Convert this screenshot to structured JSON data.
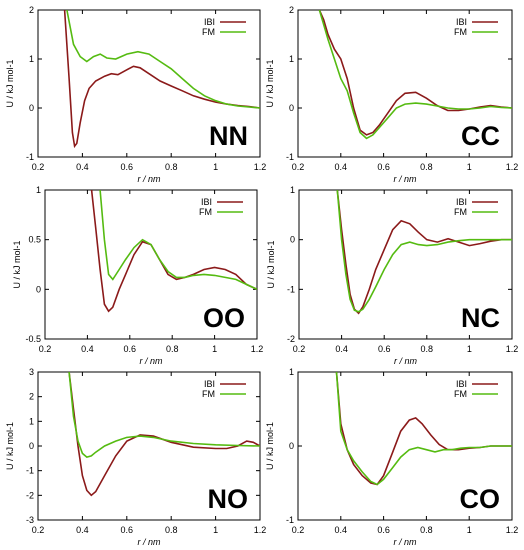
{
  "colors": {
    "IBI": "#8b1a1a",
    "FM": "#55bb11"
  },
  "chart_data": [
    {
      "id": "NN",
      "type": "line",
      "title": "NN",
      "xlabel": "r / nm",
      "ylabel": "U / kJ mol-1",
      "xlim": [
        0.2,
        1.2
      ],
      "ylim": [
        -1,
        2
      ],
      "xticks": [
        "0.2",
        "0.4",
        "0.6",
        "0.8",
        "1",
        "1.2"
      ],
      "yticks": [
        "-1",
        "0",
        "1",
        "2"
      ],
      "legend": "top-right",
      "series": [
        {
          "name": "IBI",
          "x": [
            0.32,
            0.34,
            0.355,
            0.365,
            0.375,
            0.39,
            0.41,
            0.43,
            0.46,
            0.5,
            0.53,
            0.56,
            0.6,
            0.63,
            0.66,
            0.7,
            0.75,
            0.8,
            0.85,
            0.9,
            0.95,
            1.0,
            1.05,
            1.1,
            1.15,
            1.2
          ],
          "y": [
            2.0,
            0.6,
            -0.5,
            -0.78,
            -0.72,
            -0.3,
            0.15,
            0.4,
            0.55,
            0.65,
            0.7,
            0.68,
            0.78,
            0.85,
            0.82,
            0.7,
            0.55,
            0.45,
            0.35,
            0.25,
            0.18,
            0.12,
            0.08,
            0.05,
            0.03,
            0.0
          ]
        },
        {
          "name": "FM",
          "x": [
            0.33,
            0.36,
            0.39,
            0.42,
            0.45,
            0.48,
            0.51,
            0.55,
            0.6,
            0.65,
            0.7,
            0.75,
            0.8,
            0.85,
            0.9,
            0.95,
            1.0,
            1.05,
            1.1,
            1.15,
            1.2
          ],
          "y": [
            2.0,
            1.3,
            1.05,
            0.95,
            1.05,
            1.1,
            1.02,
            1.0,
            1.1,
            1.15,
            1.1,
            0.95,
            0.8,
            0.6,
            0.4,
            0.25,
            0.15,
            0.08,
            0.04,
            0.02,
            0.0
          ]
        }
      ]
    },
    {
      "id": "CC",
      "type": "line",
      "title": "CC",
      "xlabel": "r / nm",
      "ylabel": "U / kJ mol-1",
      "xlim": [
        0.2,
        1.2
      ],
      "ylim": [
        -1,
        2
      ],
      "xticks": [
        "0.2",
        "0.4",
        "0.6",
        "0.8",
        "1",
        "1.2"
      ],
      "yticks": [
        "-1",
        "0",
        "1",
        "2"
      ],
      "legend": "top-right",
      "series": [
        {
          "name": "IBI",
          "x": [
            0.3,
            0.32,
            0.34,
            0.37,
            0.4,
            0.43,
            0.46,
            0.49,
            0.52,
            0.55,
            0.58,
            0.62,
            0.66,
            0.7,
            0.75,
            0.8,
            0.85,
            0.9,
            0.95,
            1.0,
            1.05,
            1.1,
            1.15,
            1.2
          ],
          "y": [
            2.0,
            1.8,
            1.5,
            1.2,
            1.0,
            0.6,
            0.0,
            -0.45,
            -0.55,
            -0.5,
            -0.35,
            -0.1,
            0.15,
            0.3,
            0.32,
            0.2,
            0.05,
            -0.05,
            -0.05,
            -0.02,
            0.02,
            0.05,
            0.02,
            0.0
          ]
        },
        {
          "name": "FM",
          "x": [
            0.3,
            0.32,
            0.34,
            0.37,
            0.4,
            0.43,
            0.46,
            0.49,
            0.52,
            0.55,
            0.58,
            0.62,
            0.66,
            0.7,
            0.75,
            0.8,
            0.85,
            0.9,
            0.95,
            1.0,
            1.05,
            1.1,
            1.15,
            1.2
          ],
          "y": [
            2.0,
            1.7,
            1.4,
            1.0,
            0.6,
            0.35,
            -0.1,
            -0.5,
            -0.62,
            -0.55,
            -0.4,
            -0.2,
            0.0,
            0.08,
            0.1,
            0.08,
            0.04,
            0.0,
            -0.02,
            -0.02,
            0.0,
            0.03,
            0.01,
            0.0
          ]
        }
      ]
    },
    {
      "id": "OO",
      "type": "line",
      "title": "OO",
      "xlabel": "r / nm",
      "ylabel": "U / kJ mol-1",
      "xlim": [
        0.2,
        1.2
      ],
      "ylim": [
        -0.5,
        1
      ],
      "xticks": [
        "0.2",
        "0.4",
        "0.6",
        "0.8",
        "1",
        "1.2"
      ],
      "yticks": [
        "-0.5",
        "0",
        "0.5",
        "1"
      ],
      "legend": "top-right",
      "series": [
        {
          "name": "IBI",
          "x": [
            0.42,
            0.44,
            0.46,
            0.48,
            0.5,
            0.52,
            0.55,
            0.58,
            0.62,
            0.66,
            0.7,
            0.74,
            0.78,
            0.82,
            0.86,
            0.9,
            0.95,
            1.0,
            1.05,
            1.1,
            1.15,
            1.2
          ],
          "y": [
            1.0,
            0.6,
            0.2,
            -0.15,
            -0.22,
            -0.18,
            0.0,
            0.15,
            0.35,
            0.48,
            0.45,
            0.3,
            0.15,
            0.1,
            0.12,
            0.15,
            0.2,
            0.22,
            0.2,
            0.15,
            0.05,
            0.0
          ]
        },
        {
          "name": "FM",
          "x": [
            0.46,
            0.48,
            0.5,
            0.52,
            0.55,
            0.58,
            0.62,
            0.66,
            0.7,
            0.74,
            0.78,
            0.82,
            0.86,
            0.9,
            0.95,
            1.0,
            1.05,
            1.1,
            1.15,
            1.2
          ],
          "y": [
            1.0,
            0.5,
            0.15,
            0.1,
            0.2,
            0.3,
            0.42,
            0.5,
            0.45,
            0.3,
            0.18,
            0.12,
            0.12,
            0.14,
            0.15,
            0.14,
            0.12,
            0.1,
            0.05,
            0.0
          ]
        }
      ]
    },
    {
      "id": "NC",
      "type": "line",
      "title": "NC",
      "xlabel": "r / nm",
      "ylabel": "U / kJ mol-1",
      "xlim": [
        0.2,
        1.2
      ],
      "ylim": [
        -2,
        1
      ],
      "xticks": [
        "0.2",
        "0.4",
        "0.6",
        "0.8",
        "1",
        "1.2"
      ],
      "yticks": [
        "-2",
        "-1",
        "0",
        "1"
      ],
      "legend": "top-right",
      "series": [
        {
          "name": "IBI",
          "x": [
            0.38,
            0.4,
            0.42,
            0.44,
            0.46,
            0.48,
            0.5,
            0.53,
            0.56,
            0.6,
            0.64,
            0.68,
            0.72,
            0.76,
            0.8,
            0.85,
            0.9,
            0.95,
            1.0,
            1.05,
            1.1,
            1.15,
            1.2
          ],
          "y": [
            1.0,
            0.2,
            -0.5,
            -1.1,
            -1.4,
            -1.48,
            -1.35,
            -1.0,
            -0.6,
            -0.2,
            0.2,
            0.38,
            0.32,
            0.15,
            0.0,
            -0.05,
            0.02,
            -0.05,
            -0.12,
            -0.08,
            -0.03,
            0.0,
            0.0
          ]
        },
        {
          "name": "FM",
          "x": [
            0.38,
            0.4,
            0.42,
            0.44,
            0.46,
            0.48,
            0.5,
            0.53,
            0.56,
            0.6,
            0.64,
            0.68,
            0.72,
            0.76,
            0.8,
            0.85,
            0.9,
            0.95,
            1.0,
            1.05,
            1.1,
            1.15,
            1.2
          ],
          "y": [
            1.0,
            0.0,
            -0.7,
            -1.2,
            -1.42,
            -1.45,
            -1.4,
            -1.2,
            -0.95,
            -0.6,
            -0.3,
            -0.1,
            -0.05,
            -0.1,
            -0.12,
            -0.1,
            -0.05,
            -0.02,
            0.0,
            0.0,
            0.0,
            0.0,
            0.0
          ]
        }
      ]
    },
    {
      "id": "NO",
      "type": "line",
      "title": "NO",
      "xlabel": "r / nm",
      "ylabel": "U / kJ mol-1",
      "xlim": [
        0.2,
        1.2
      ],
      "ylim": [
        -3,
        3
      ],
      "xticks": [
        "0.2",
        "0.4",
        "0.6",
        "0.8",
        "1",
        "1.2"
      ],
      "yticks": [
        "-3",
        "-2",
        "-1",
        "0",
        "1",
        "2",
        "3"
      ],
      "legend": "top-right",
      "series": [
        {
          "name": "IBI",
          "x": [
            0.34,
            0.36,
            0.38,
            0.4,
            0.42,
            0.44,
            0.46,
            0.5,
            0.55,
            0.6,
            0.66,
            0.72,
            0.8,
            0.9,
            1.0,
            1.05,
            1.1,
            1.14,
            1.17,
            1.2
          ],
          "y": [
            3.0,
            1.5,
            0.0,
            -1.2,
            -1.8,
            -2.0,
            -1.85,
            -1.2,
            -0.4,
            0.2,
            0.45,
            0.4,
            0.15,
            -0.05,
            -0.1,
            -0.1,
            0.0,
            0.2,
            0.15,
            0.0
          ]
        },
        {
          "name": "FM",
          "x": [
            0.34,
            0.36,
            0.38,
            0.4,
            0.42,
            0.44,
            0.46,
            0.5,
            0.55,
            0.6,
            0.66,
            0.72,
            0.8,
            0.9,
            1.0,
            1.1,
            1.2
          ],
          "y": [
            3.0,
            1.2,
            0.2,
            -0.3,
            -0.45,
            -0.4,
            -0.25,
            0.0,
            0.2,
            0.35,
            0.4,
            0.35,
            0.2,
            0.1,
            0.05,
            0.02,
            0.0
          ]
        }
      ]
    },
    {
      "id": "CO",
      "type": "line",
      "title": "CO",
      "xlabel": "r / nm",
      "ylabel": "U / kJ mol-1",
      "xlim": [
        0.2,
        1.2
      ],
      "ylim": [
        -1,
        1
      ],
      "xticks": [
        "0.2",
        "0.4",
        "0.6",
        "0.8",
        "1",
        "1.2"
      ],
      "yticks": [
        "-1",
        "0",
        "1"
      ],
      "legend": "top-right",
      "series": [
        {
          "name": "IBI",
          "x": [
            0.38,
            0.4,
            0.43,
            0.46,
            0.5,
            0.54,
            0.57,
            0.6,
            0.64,
            0.68,
            0.72,
            0.75,
            0.78,
            0.82,
            0.86,
            0.9,
            0.95,
            1.0,
            1.05,
            1.1,
            1.15,
            1.2
          ],
          "y": [
            1.0,
            0.3,
            -0.05,
            -0.25,
            -0.4,
            -0.5,
            -0.52,
            -0.4,
            -0.1,
            0.2,
            0.35,
            0.38,
            0.3,
            0.15,
            0.02,
            -0.05,
            -0.05,
            -0.03,
            -0.02,
            0.0,
            0.0,
            0.0
          ]
        },
        {
          "name": "FM",
          "x": [
            0.38,
            0.4,
            0.43,
            0.46,
            0.5,
            0.54,
            0.57,
            0.6,
            0.64,
            0.68,
            0.72,
            0.76,
            0.8,
            0.84,
            0.88,
            0.92,
            0.96,
            1.0,
            1.05,
            1.1,
            1.15,
            1.2
          ],
          "y": [
            1.0,
            0.2,
            -0.05,
            -0.2,
            -0.35,
            -0.48,
            -0.52,
            -0.45,
            -0.3,
            -0.15,
            -0.05,
            -0.02,
            -0.05,
            -0.08,
            -0.05,
            -0.05,
            -0.03,
            -0.02,
            -0.02,
            0.0,
            0.0,
            0.0
          ]
        }
      ]
    }
  ]
}
